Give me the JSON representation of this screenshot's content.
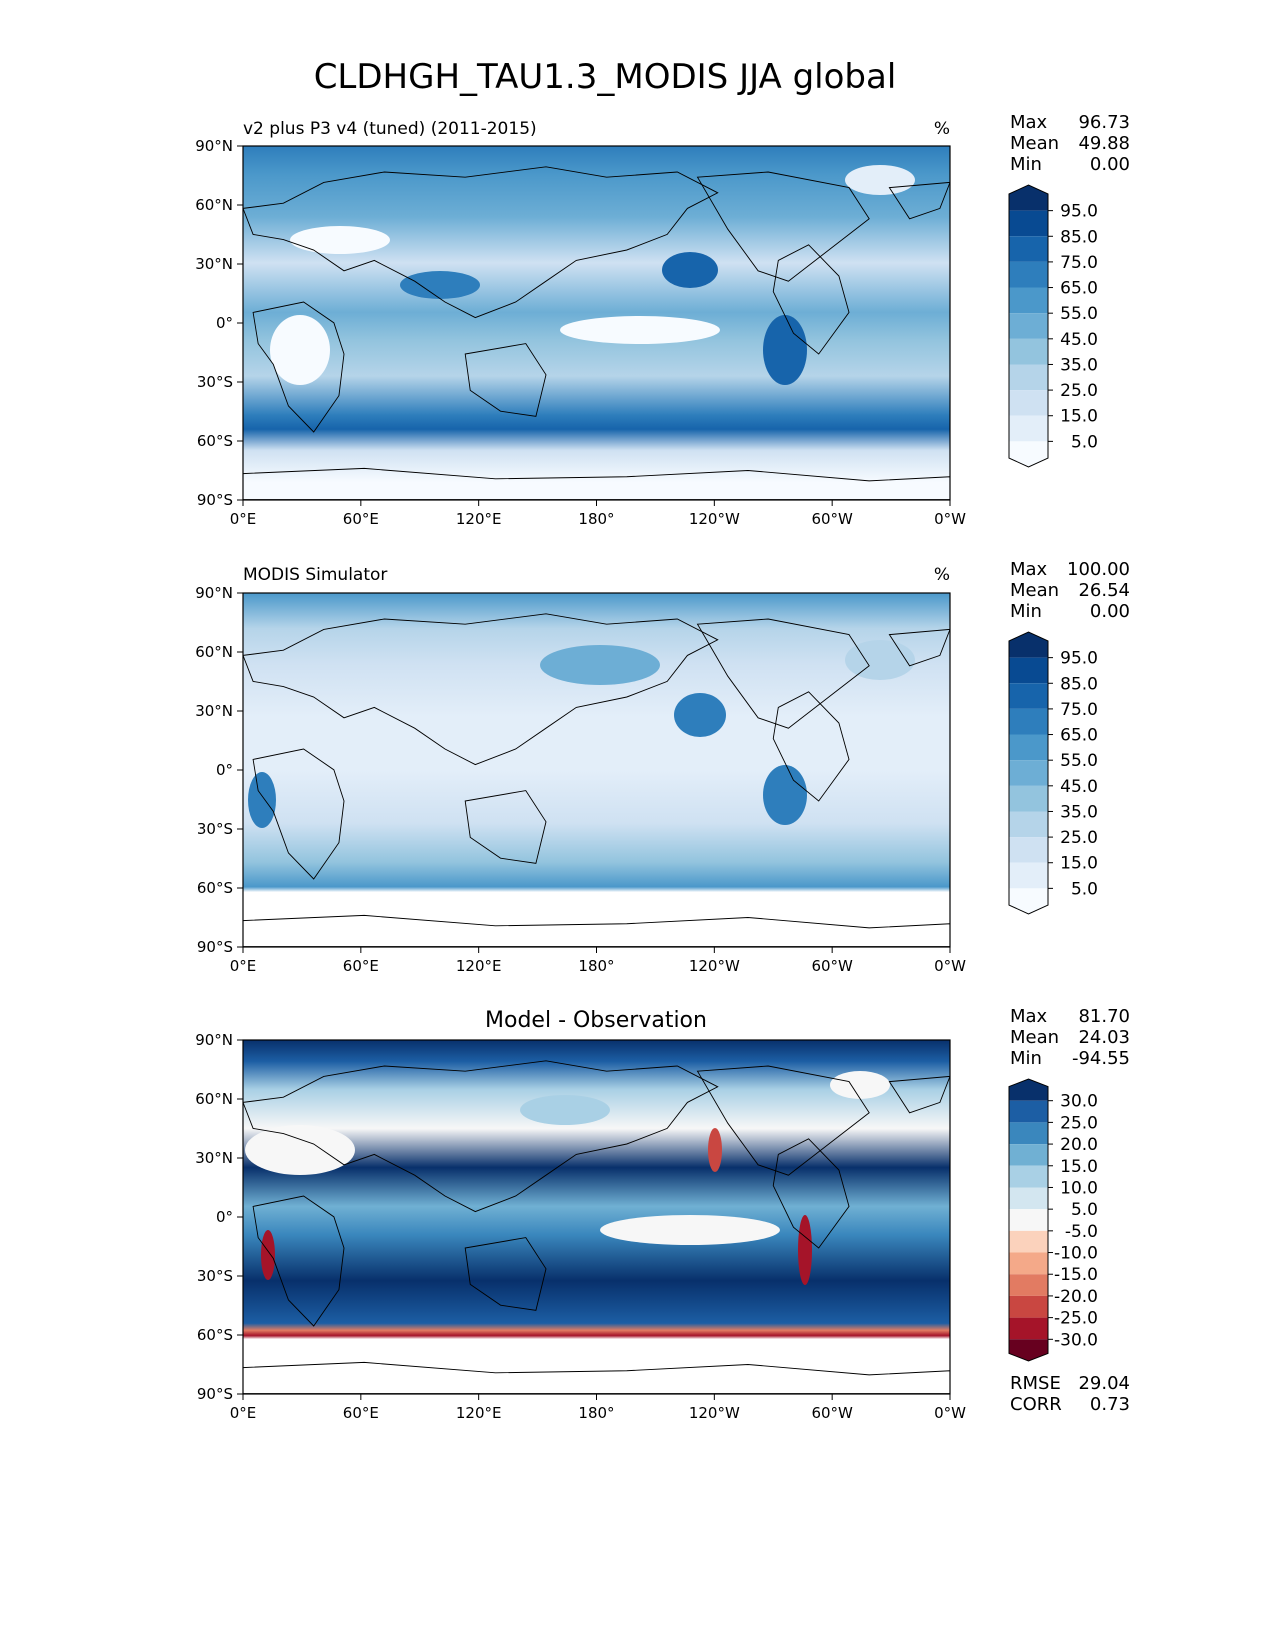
{
  "figure": {
    "title": "CLDHGH_TAU1.3_MODIS JJA global"
  },
  "axes": {
    "xticks": [
      "0°E",
      "60°E",
      "120°E",
      "180°",
      "120°W",
      "60°W",
      "0°W"
    ],
    "yticks": [
      "90°N",
      "60°N",
      "30°N",
      "0°",
      "30°S",
      "60°S",
      "90°S"
    ]
  },
  "chart_data": [
    {
      "type": "heatmap",
      "title": "v2 plus P3 v4 (tuned) (2011-2015)",
      "units": "%",
      "stats": [
        {
          "label": "Max",
          "value": "96.73"
        },
        {
          "label": "Mean",
          "value": "49.88"
        },
        {
          "label": "Min",
          "value": "0.00"
        }
      ],
      "colorbar": {
        "ticks": [
          "95.0",
          "85.0",
          "75.0",
          "65.0",
          "55.0",
          "45.0",
          "35.0",
          "25.0",
          "15.0",
          "5.0"
        ],
        "colors": [
          "#f7fbff",
          "#e3eef9",
          "#cfe1f2",
          "#b5d4e9",
          "#93c4de",
          "#6daed5",
          "#4b98ca",
          "#2e7ebc",
          "#1764ab",
          "#084a92",
          "#08306b"
        ]
      },
      "xlim": [
        0,
        360
      ],
      "ylim": [
        -90,
        90
      ]
    },
    {
      "type": "heatmap",
      "title": "MODIS Simulator",
      "units": "%",
      "stats": [
        {
          "label": "Max",
          "value": "100.00"
        },
        {
          "label": "Mean",
          "value": "26.54"
        },
        {
          "label": "Min",
          "value": "0.00"
        }
      ],
      "colorbar": {
        "ticks": [
          "95.0",
          "85.0",
          "75.0",
          "65.0",
          "55.0",
          "45.0",
          "35.0",
          "25.0",
          "15.0",
          "5.0"
        ],
        "colors": [
          "#f7fbff",
          "#e3eef9",
          "#cfe1f2",
          "#b5d4e9",
          "#93c4de",
          "#6daed5",
          "#4b98ca",
          "#2e7ebc",
          "#1764ab",
          "#084a92",
          "#08306b"
        ]
      },
      "xlim": [
        0,
        360
      ],
      "ylim": [
        -90,
        90
      ]
    },
    {
      "type": "heatmap",
      "title": "Model - Observation",
      "units": "",
      "stats": [
        {
          "label": "Max",
          "value": "81.70"
        },
        {
          "label": "Mean",
          "value": "24.03"
        },
        {
          "label": "Min",
          "value": "-94.55"
        }
      ],
      "metrics": [
        {
          "label": "RMSE",
          "value": "29.04"
        },
        {
          "label": "CORR",
          "value": "0.73"
        }
      ],
      "colorbar": {
        "ticks": [
          "30.0",
          "25.0",
          "20.0",
          "15.0",
          "10.0",
          "5.0",
          "-5.0",
          "-10.0",
          "-15.0",
          "-20.0",
          "-25.0",
          "-30.0"
        ],
        "colors": [
          "#67001f",
          "#a51429",
          "#c94741",
          "#e27b62",
          "#f4a989",
          "#fbd2bc",
          "#f7f7f7",
          "#d3e6f0",
          "#a9d0e5",
          "#70b0d3",
          "#3a87bd",
          "#1c5ea4",
          "#08306b"
        ]
      },
      "xlim": [
        0,
        360
      ],
      "ylim": [
        -90,
        90
      ]
    }
  ]
}
